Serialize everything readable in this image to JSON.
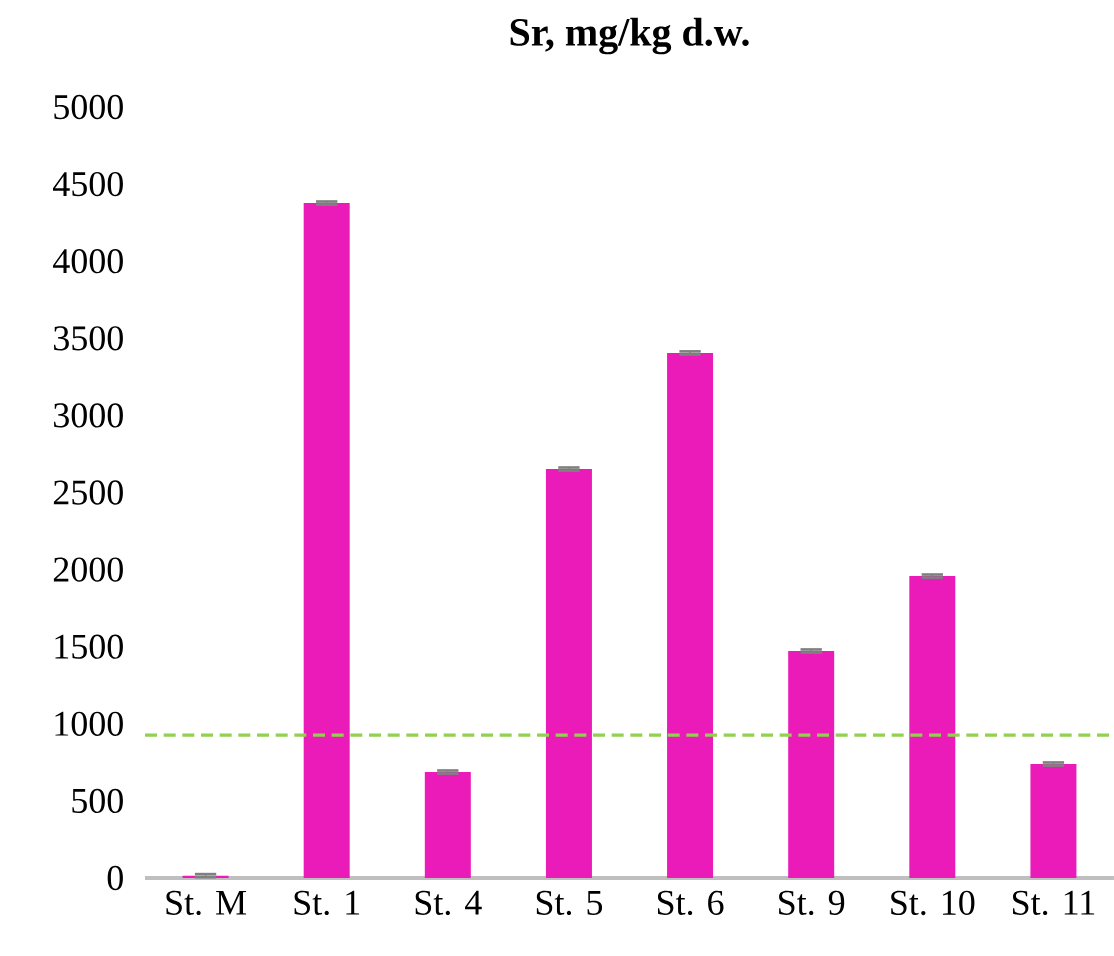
{
  "chart_data": {
    "type": "bar",
    "title": "Sr, mg/kg d.w.",
    "categories": [
      "St. M",
      "St. 1",
      "St. 4",
      "St. 5",
      "St. 6",
      "St. 9",
      "St. 10",
      "St. 11"
    ],
    "values": [
      15,
      4377,
      687,
      2652,
      3405,
      1472,
      1958,
      739
    ],
    "errors": [
      10,
      10,
      10,
      10,
      10,
      10,
      10,
      10
    ],
    "color": "#ea1bb8",
    "ylim": [
      0,
      5000
    ],
    "yticks": [
      0,
      500,
      1000,
      1500,
      2000,
      2500,
      3000,
      3500,
      4000,
      4500,
      5000
    ],
    "ref_lines": [
      {
        "axis": "y",
        "value": 927,
        "color": "#92d050",
        "line_style": "dashed"
      }
    ]
  }
}
